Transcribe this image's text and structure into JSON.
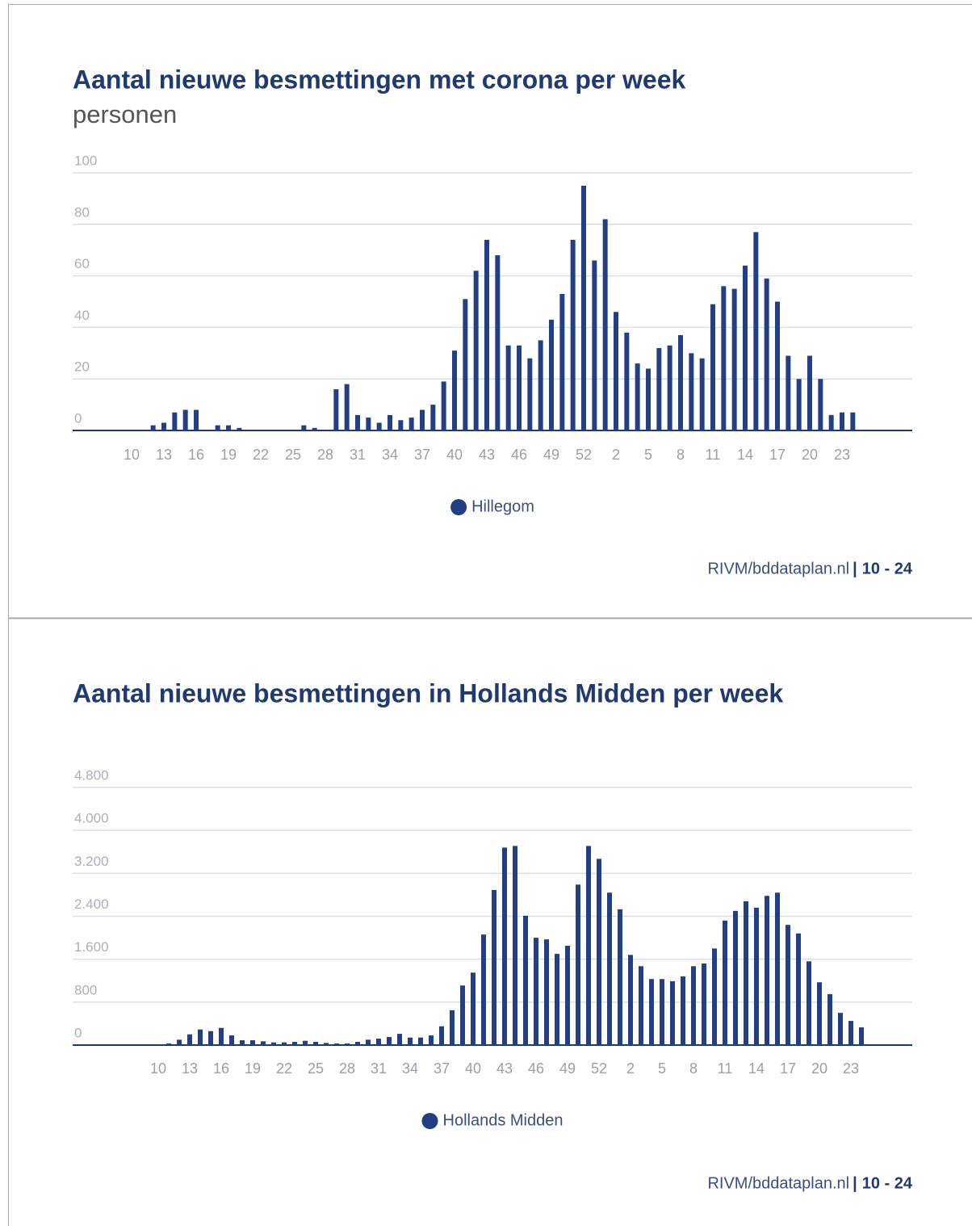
{
  "chart_data": [
    {
      "type": "bar",
      "title": "Aantal nieuwe besmettingen met corona per week",
      "subtitle": "personen",
      "categories": [
        "10",
        null,
        null,
        "13",
        null,
        null,
        "16",
        null,
        null,
        "19",
        null,
        null,
        "22",
        null,
        null,
        "25",
        null,
        null,
        "28",
        null,
        null,
        "31",
        null,
        null,
        "34",
        null,
        null,
        "37",
        null,
        null,
        "40",
        null,
        null,
        "43",
        null,
        null,
        "46",
        null,
        null,
        "49",
        null,
        null,
        "52",
        null,
        null,
        "2",
        null,
        null,
        "5",
        null,
        null,
        "8",
        null,
        null,
        "11",
        null,
        null,
        "14",
        null,
        null,
        "17",
        null,
        null,
        "20",
        null,
        null,
        "23",
        null
      ],
      "series": [
        {
          "name": "Hillegom",
          "color": "#233f84",
          "values": [
            0,
            0,
            2,
            3,
            7,
            8,
            8,
            0,
            2,
            2,
            1,
            0,
            0,
            0,
            0,
            0,
            2,
            1,
            0,
            16,
            18,
            6,
            5,
            3,
            6,
            4,
            5,
            8,
            10,
            19,
            31,
            51,
            62,
            74,
            68,
            33,
            33,
            28,
            35,
            43,
            53,
            74,
            95,
            66,
            82,
            46,
            38,
            26,
            24,
            32,
            33,
            37,
            30,
            28,
            49,
            56,
            55,
            64,
            77,
            59,
            50,
            29,
            20,
            29,
            20,
            6,
            7,
            7
          ]
        }
      ],
      "ylim": [
        0,
        100
      ],
      "yticks": [
        0,
        20,
        40,
        60,
        80,
        100
      ],
      "grid": true,
      "source": "RIVM/bddataplan.nl",
      "separator": "|",
      "period": "10 - 24"
    },
    {
      "type": "bar",
      "title": "Aantal nieuwe besmettingen in Hollands Midden per week",
      "categories": [
        "10",
        null,
        null,
        "13",
        null,
        null,
        "16",
        null,
        null,
        "19",
        null,
        null,
        "22",
        null,
        null,
        "25",
        null,
        null,
        "28",
        null,
        null,
        "31",
        null,
        null,
        "34",
        null,
        null,
        "37",
        null,
        null,
        "40",
        null,
        null,
        "43",
        null,
        null,
        "46",
        null,
        null,
        "49",
        null,
        null,
        "52",
        null,
        null,
        "2",
        null,
        null,
        "5",
        null,
        null,
        "8",
        null,
        null,
        "11",
        null,
        null,
        "14",
        null,
        null,
        "17",
        null,
        null,
        "20",
        null,
        null,
        "23",
        null
      ],
      "series": [
        {
          "name": "Hollands Midden",
          "color": "#233f84",
          "values": [
            0,
            30,
            100,
            200,
            290,
            260,
            320,
            180,
            90,
            90,
            70,
            50,
            50,
            60,
            80,
            60,
            40,
            30,
            30,
            60,
            100,
            120,
            150,
            210,
            140,
            140,
            180,
            350,
            650,
            1110,
            1350,
            2060,
            2890,
            3680,
            3710,
            2410,
            2000,
            1970,
            1700,
            1850,
            2990,
            3710,
            3470,
            2840,
            2530,
            1680,
            1470,
            1230,
            1230,
            1190,
            1280,
            1470,
            1520,
            1800,
            2320,
            2500,
            2680,
            2560,
            2780,
            2840,
            2240,
            2080,
            1560,
            1170,
            950,
            600,
            450,
            330
          ]
        }
      ],
      "ylim": [
        0,
        4800
      ],
      "yticks": [
        0,
        800,
        {
          "value": 1600,
          "label": "1.600"
        },
        {
          "value": 2400,
          "label": "2.400"
        },
        {
          "value": 3200,
          "label": "3.200"
        },
        {
          "value": 4000,
          "label": "4.000"
        },
        {
          "value": 4800,
          "label": "4.800"
        }
      ],
      "grid": true,
      "source": "RIVM/bddataplan.nl",
      "separator": "|",
      "period": "10 - 24"
    }
  ]
}
